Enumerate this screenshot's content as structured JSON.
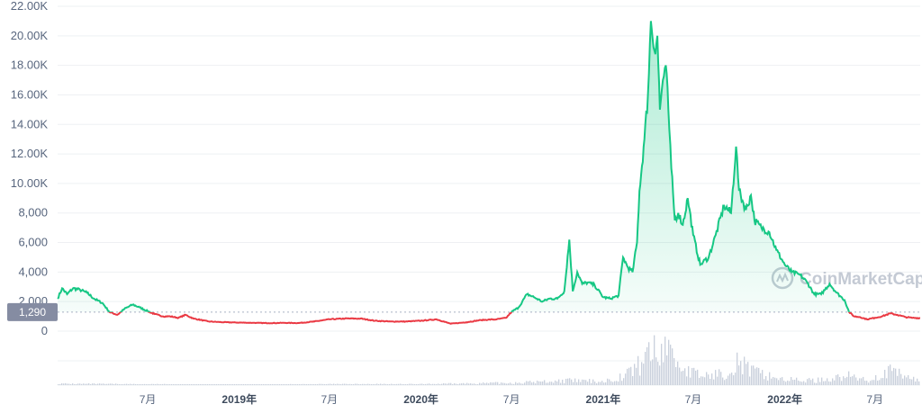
{
  "chart_data": {
    "type": "area",
    "y_ticks": [
      "0",
      "2,000",
      "4,000",
      "6,000",
      "8,000",
      "10.00K",
      "12.00K",
      "14.00K",
      "16.00K",
      "18.00K",
      "20.00K",
      "22.00K"
    ],
    "ylim": [
      0,
      22000
    ],
    "x_ticks": [
      {
        "label": "7月",
        "date": "2018-07-01",
        "bold": false
      },
      {
        "label": "2019年",
        "date": "2019-01-01",
        "bold": true
      },
      {
        "label": "7月",
        "date": "2019-07-01",
        "bold": false
      },
      {
        "label": "2020年",
        "date": "2020-01-01",
        "bold": true
      },
      {
        "label": "7月",
        "date": "2020-07-01",
        "bold": false
      },
      {
        "label": "2021年",
        "date": "2021-01-01",
        "bold": true
      },
      {
        "label": "7月",
        "date": "2021-07-01",
        "bold": false
      },
      {
        "label": "2022年",
        "date": "2022-01-01",
        "bold": true
      },
      {
        "label": "7月",
        "date": "2022-07-01",
        "bold": false
      }
    ],
    "xlim": [
      "2018-01-01",
      "2022-09-30"
    ],
    "reference_value": 1290,
    "reference_label": "1,290",
    "up_color": "#16c784",
    "down_color": "#ea3943",
    "series": [
      {
        "points": [
          [
            "2018-01-01",
            2200
          ],
          [
            "2018-01-10",
            2900
          ],
          [
            "2018-01-20",
            2500
          ],
          [
            "2018-02-01",
            2900
          ],
          [
            "2018-02-15",
            2800
          ],
          [
            "2018-03-01",
            2600
          ],
          [
            "2018-03-15",
            2200
          ],
          [
            "2018-04-01",
            1900
          ],
          [
            "2018-04-15",
            1300
          ],
          [
            "2018-05-01",
            1100
          ],
          [
            "2018-05-15",
            1500
          ],
          [
            "2018-06-01",
            1800
          ],
          [
            "2018-06-15",
            1600
          ],
          [
            "2018-07-01",
            1350
          ],
          [
            "2018-07-15",
            1150
          ],
          [
            "2018-08-01",
            1000
          ],
          [
            "2018-08-15",
            1000
          ],
          [
            "2018-09-01",
            900
          ],
          [
            "2018-09-15",
            1100
          ],
          [
            "2018-10-01",
            850
          ],
          [
            "2018-11-01",
            650
          ],
          [
            "2018-12-01",
            600
          ],
          [
            "2019-01-01",
            580
          ],
          [
            "2019-02-01",
            560
          ],
          [
            "2019-03-01",
            540
          ],
          [
            "2019-04-01",
            560
          ],
          [
            "2019-05-01",
            550
          ],
          [
            "2019-06-01",
            650
          ],
          [
            "2019-07-01",
            800
          ],
          [
            "2019-08-01",
            850
          ],
          [
            "2019-09-01",
            850
          ],
          [
            "2019-10-01",
            700
          ],
          [
            "2019-11-01",
            650
          ],
          [
            "2019-12-01",
            650
          ],
          [
            "2020-01-01",
            700
          ],
          [
            "2020-02-01",
            800
          ],
          [
            "2020-03-01",
            500
          ],
          [
            "2020-04-01",
            600
          ],
          [
            "2020-05-01",
            750
          ],
          [
            "2020-06-01",
            800
          ],
          [
            "2020-06-20",
            900
          ],
          [
            "2020-07-01",
            1300
          ],
          [
            "2020-07-15",
            1600
          ],
          [
            "2020-08-01",
            2500
          ],
          [
            "2020-08-15",
            2300
          ],
          [
            "2020-09-01",
            2000
          ],
          [
            "2020-09-15",
            2200
          ],
          [
            "2020-10-01",
            2200
          ],
          [
            "2020-10-15",
            2700
          ],
          [
            "2020-10-25",
            6200
          ],
          [
            "2020-11-01",
            2700
          ],
          [
            "2020-11-10",
            4000
          ],
          [
            "2020-11-20",
            3200
          ],
          [
            "2020-12-01",
            3300
          ],
          [
            "2020-12-15",
            3100
          ],
          [
            "2021-01-01",
            2300
          ],
          [
            "2021-01-15",
            2200
          ],
          [
            "2021-02-01",
            2400
          ],
          [
            "2021-02-10",
            5000
          ],
          [
            "2021-02-20",
            4300
          ],
          [
            "2021-03-01",
            4000
          ],
          [
            "2021-03-10",
            6000
          ],
          [
            "2021-03-15",
            9500
          ],
          [
            "2021-03-25",
            13000
          ],
          [
            "2021-04-01",
            16000
          ],
          [
            "2021-04-07",
            21000
          ],
          [
            "2021-04-14",
            19000
          ],
          [
            "2021-04-20",
            20000
          ],
          [
            "2021-04-25",
            15000
          ],
          [
            "2021-05-01",
            17000
          ],
          [
            "2021-05-07",
            18000
          ],
          [
            "2021-05-12",
            15000
          ],
          [
            "2021-05-18",
            11000
          ],
          [
            "2021-05-25",
            7500
          ],
          [
            "2021-06-01",
            8000
          ],
          [
            "2021-06-10",
            7200
          ],
          [
            "2021-06-20",
            9000
          ],
          [
            "2021-07-01",
            6500
          ],
          [
            "2021-07-15",
            4500
          ],
          [
            "2021-08-01",
            5000
          ],
          [
            "2021-08-15",
            6500
          ],
          [
            "2021-09-01",
            8500
          ],
          [
            "2021-09-15",
            8000
          ],
          [
            "2021-09-25",
            12500
          ],
          [
            "2021-10-01",
            9500
          ],
          [
            "2021-10-15",
            8200
          ],
          [
            "2021-10-25",
            9200
          ],
          [
            "2021-11-01",
            7500
          ],
          [
            "2021-11-15",
            7000
          ],
          [
            "2021-12-01",
            6700
          ],
          [
            "2021-12-15",
            5500
          ],
          [
            "2022-01-01",
            4500
          ],
          [
            "2022-01-15",
            4000
          ],
          [
            "2022-02-01",
            3800
          ],
          [
            "2022-02-15",
            3300
          ],
          [
            "2022-03-01",
            2500
          ],
          [
            "2022-03-15",
            2500
          ],
          [
            "2022-04-01",
            3200
          ],
          [
            "2022-04-15",
            2600
          ],
          [
            "2022-05-01",
            2100
          ],
          [
            "2022-05-10",
            1300
          ],
          [
            "2022-05-20",
            1000
          ],
          [
            "2022-06-01",
            950
          ],
          [
            "2022-06-15",
            800
          ],
          [
            "2022-07-01",
            900
          ],
          [
            "2022-07-15",
            1000
          ],
          [
            "2022-08-01",
            1200
          ],
          [
            "2022-08-15",
            1100
          ],
          [
            "2022-09-01",
            950
          ],
          [
            "2022-09-15",
            900
          ],
          [
            "2022-09-30",
            880
          ]
        ]
      }
    ],
    "volume": {
      "points": [
        [
          "2018-01-01",
          0.03
        ],
        [
          "2018-06-01",
          0.02
        ],
        [
          "2019-01-01",
          0.01
        ],
        [
          "2019-07-01",
          0.02
        ],
        [
          "2020-01-01",
          0.02
        ],
        [
          "2020-07-01",
          0.05
        ],
        [
          "2020-10-25",
          0.1
        ],
        [
          "2021-01-01",
          0.08
        ],
        [
          "2021-02-10",
          0.2
        ],
        [
          "2021-03-15",
          0.45
        ],
        [
          "2021-04-07",
          0.85
        ],
        [
          "2021-04-20",
          0.55
        ],
        [
          "2021-05-07",
          1.0
        ],
        [
          "2021-05-18",
          0.65
        ],
        [
          "2021-06-10",
          0.35
        ],
        [
          "2021-07-15",
          0.2
        ],
        [
          "2021-09-01",
          0.25
        ],
        [
          "2021-09-25",
          0.55
        ],
        [
          "2021-10-25",
          0.3
        ],
        [
          "2021-12-01",
          0.2
        ],
        [
          "2022-01-01",
          0.12
        ],
        [
          "2022-03-01",
          0.1
        ],
        [
          "2022-05-10",
          0.2
        ],
        [
          "2022-06-15",
          0.1
        ],
        [
          "2022-08-01",
          0.3
        ],
        [
          "2022-09-30",
          0.08
        ]
      ]
    },
    "watermark": "CoinMarketCap"
  }
}
